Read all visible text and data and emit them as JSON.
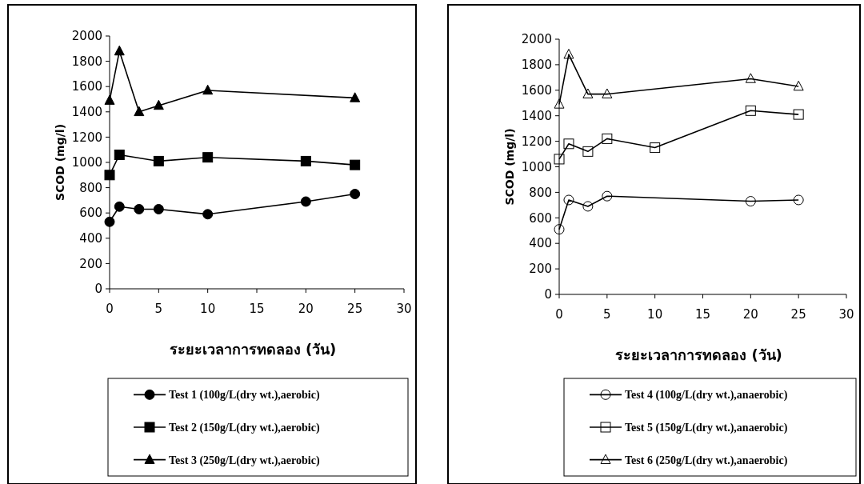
{
  "chart_data": [
    {
      "type": "line",
      "xlabel": "ระยะเวลาการทดลอง (วัน)",
      "ylabel": "SCOD (mg/l)",
      "xlim": [
        0,
        30
      ],
      "xticks": [
        0,
        5,
        10,
        15,
        20,
        25,
        30
      ],
      "ylim": [
        0,
        2000
      ],
      "yticks": [
        0,
        200,
        400,
        600,
        800,
        1000,
        1200,
        1400,
        1600,
        1800,
        2000
      ],
      "legend": "bottom",
      "grid": false,
      "series": [
        {
          "name": "Test 1 (100g/L(dry wt.),aerobic)",
          "color": "#000000",
          "marker": "circle",
          "x": [
            0,
            1,
            3,
            5,
            10,
            20,
            25
          ],
          "values": [
            530,
            650,
            630,
            630,
            590,
            690,
            750
          ]
        },
        {
          "name": "Test 2 (150g/L(dry wt.),aerobic)",
          "color": "#000000",
          "marker": "square",
          "x": [
            0,
            1,
            5,
            10,
            20,
            25
          ],
          "values": [
            900,
            1060,
            1010,
            1040,
            1010,
            980
          ]
        },
        {
          "name": "Test 3 (250g/L(dry wt.),aerobic)",
          "color": "#000000",
          "marker": "triangle",
          "x": [
            0,
            1,
            3,
            5,
            10,
            25
          ],
          "values": [
            1490,
            1880,
            1400,
            1450,
            1570,
            1510
          ]
        }
      ]
    },
    {
      "type": "line",
      "xlabel": "ระยะเวลาการทดลอง (วัน)",
      "ylabel": "SCOD (mg/l)",
      "xlim": [
        0,
        30
      ],
      "xticks": [
        0,
        5,
        10,
        15,
        20,
        25,
        30
      ],
      "ylim": [
        0,
        2000
      ],
      "yticks": [
        0,
        200,
        400,
        600,
        800,
        1000,
        1200,
        1400,
        1600,
        1800,
        2000
      ],
      "legend": "bottom",
      "grid": false,
      "series": [
        {
          "name": "Test 4 (100g/L(dry wt.),anaerobic)",
          "color": "#000000",
          "marker": "circle",
          "x": [
            0,
            1,
            3,
            5,
            20,
            25
          ],
          "values": [
            510,
            740,
            690,
            770,
            730,
            740
          ]
        },
        {
          "name": "Test 5 (150g/L(dry wt.),anaerobic)",
          "color": "#000000",
          "marker": "square",
          "x": [
            0,
            1,
            3,
            5,
            10,
            20,
            25
          ],
          "values": [
            1060,
            1180,
            1120,
            1220,
            1150,
            1440,
            1410
          ]
        },
        {
          "name": "Test 6 (250g/L(dry wt.),anaerobic)",
          "color": "#000000",
          "marker": "triangle",
          "x": [
            0,
            1,
            3,
            5,
            20,
            25
          ],
          "values": [
            1490,
            1880,
            1570,
            1570,
            1690,
            1630
          ]
        }
      ]
    }
  ]
}
